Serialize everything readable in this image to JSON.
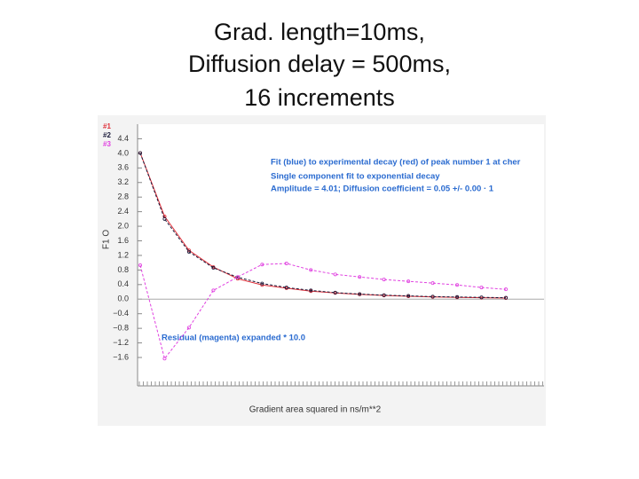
{
  "chart_data": {
    "type": "line",
    "title": [
      "Grad. length=10ms,",
      "Diffusion delay = 500ms,",
      "16 increments"
    ],
    "y_label": "F1 O",
    "x_label": "Gradient area squared in ns/m**2",
    "annotations": [
      "Fit (blue) to experimental decay (red) of peak number 1 at cher",
      "Single component fit to  exponential decay",
      "Amplitude =    4.01;  Diffusion coefficient =  0.05 +/-  0.00 · 1"
    ],
    "residual_note": "Residual (magenta) expanded *   10.0",
    "categories": [
      null,
      null,
      null,
      null,
      null,
      null,
      null,
      null,
      null,
      null,
      null,
      null,
      null,
      null,
      null,
      null
    ],
    "series": [
      {
        "name": "#1",
        "color": "#e0303a",
        "values": [
          4.01,
          2.27,
          1.34,
          0.88,
          0.56,
          0.39,
          0.3,
          0.22,
          0.17,
          0.13,
          0.1,
          0.08,
          0.06,
          0.05,
          0.04,
          0.03
        ]
      },
      {
        "name": "#2",
        "color": "#1a1a3a",
        "values": [
          4.01,
          2.2,
          1.3,
          0.86,
          0.6,
          0.43,
          0.32,
          0.24,
          0.18,
          0.14,
          0.11,
          0.09,
          0.07,
          0.06,
          0.05,
          0.04
        ]
      },
      {
        "name": "#3",
        "color": "#e040e0",
        "values": [
          0.93,
          -1.63,
          -0.78,
          0.24,
          0.61,
          0.95,
          0.98,
          0.8,
          0.68,
          0.61,
          0.54,
          0.49,
          0.44,
          0.39,
          0.32,
          0.27
        ]
      }
    ],
    "ylim": [
      -2.5,
      4.8
    ],
    "yticks": [
      4.4,
      {
        "value": 4.0,
        "label": "4.0"
      },
      3.6,
      3.2,
      2.8,
      2.4,
      {
        "value": 2.0,
        "label": "2.0"
      },
      1.6,
      1.2,
      0.8,
      0.4,
      {
        "value": 0,
        "label": "0.0"
      },
      {
        "value": -0.4,
        "label": "−0.4"
      },
      {
        "value": -0.8,
        "label": "−0.8"
      },
      {
        "value": -1.2,
        "label": "−1.2"
      },
      {
        "value": -1.6,
        "label": "−1.6"
      }
    ]
  }
}
